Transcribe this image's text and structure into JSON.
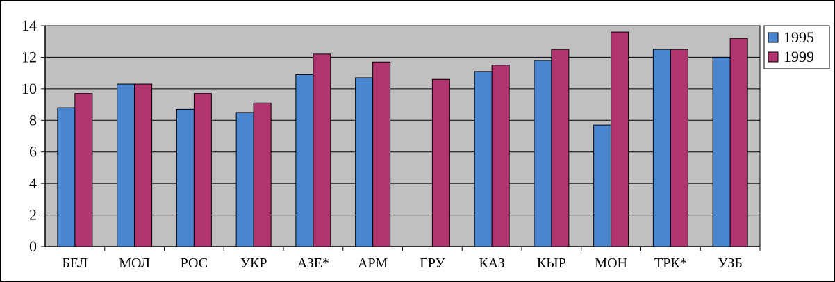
{
  "chart_data": {
    "type": "bar",
    "title": "",
    "xlabel": "",
    "ylabel": "",
    "ylim": [
      0,
      14
    ],
    "yticks": [
      0,
      2,
      4,
      6,
      8,
      10,
      12,
      14
    ],
    "grid": true,
    "legend_position": "right",
    "categories": [
      "БЕЛ",
      "МОЛ",
      "РОС",
      "УКР",
      "АЗЕ*",
      "АРМ",
      "ГРУ",
      "КАЗ",
      "КЫР",
      "МОН",
      "ТРК*",
      "УЗБ"
    ],
    "series": [
      {
        "name": "1995",
        "color": "#4a86d0",
        "values": [
          8.8,
          10.3,
          8.7,
          8.5,
          10.9,
          10.7,
          null,
          11.1,
          11.8,
          7.7,
          12.5,
          12.0
        ]
      },
      {
        "name": "1999",
        "color": "#b0346e",
        "values": [
          9.7,
          10.3,
          9.7,
          9.1,
          12.2,
          11.7,
          10.6,
          11.5,
          12.5,
          13.6,
          12.5,
          13.2
        ]
      }
    ],
    "plot_background": "#c0c0c0"
  }
}
